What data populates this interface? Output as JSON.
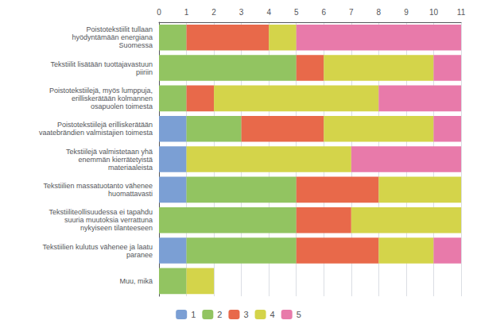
{
  "chart_data": {
    "type": "bar",
    "orientation": "horizontal",
    "stacked": true,
    "categories": [
      "Poistotekstiilit tullaan\nhyödyntämään energiana\nSuomessa",
      "Tekstiilit lisätään tuottajavastuun\npiiriin",
      "Poistotekstiilejä, myös lumppuja,\nerilliskerätään kolmannen\nosapuolen toimesta",
      "Poistotekstiilejä erilliskerätään\nvaatebrändien valmistajien toimesta",
      "Tekstiilejä valmistetaan yhä\nenemmän kierrätetyistä\nmateriaaleista",
      "Tekstiilien massatuotanto vähenee\nhuomattavasti",
      "Tekstiiliteollisuudessa ei tapahdu\nsuuria muutoksia verrattuna\nnykyiseen tilanteeseen",
      "Tekstiilien kulutus vähenee ja laatu\nparanee",
      "Muu, mikä"
    ],
    "series": [
      {
        "name": "1",
        "color": "#7b9fd4",
        "values": [
          0,
          0,
          0,
          1,
          1,
          1,
          0,
          1,
          0
        ]
      },
      {
        "name": "2",
        "color": "#92c461",
        "values": [
          1,
          5,
          1,
          2,
          0,
          4,
          5,
          4,
          1
        ]
      },
      {
        "name": "3",
        "color": "#e8694a",
        "values": [
          3,
          1,
          1,
          3,
          0,
          3,
          2,
          3,
          0
        ]
      },
      {
        "name": "4",
        "color": "#d4d44a",
        "values": [
          1,
          4,
          6,
          4,
          6,
          3,
          4,
          2,
          1
        ]
      },
      {
        "name": "5",
        "color": "#e87aaa",
        "values": [
          6,
          1,
          3,
          1,
          4,
          0,
          0,
          1,
          0
        ]
      }
    ],
    "xlim": [
      0,
      11
    ],
    "xticks": [
      0,
      1,
      2,
      3,
      4,
      5,
      6,
      7,
      8,
      9,
      10,
      11
    ],
    "grid": true,
    "legend": "bottom"
  }
}
